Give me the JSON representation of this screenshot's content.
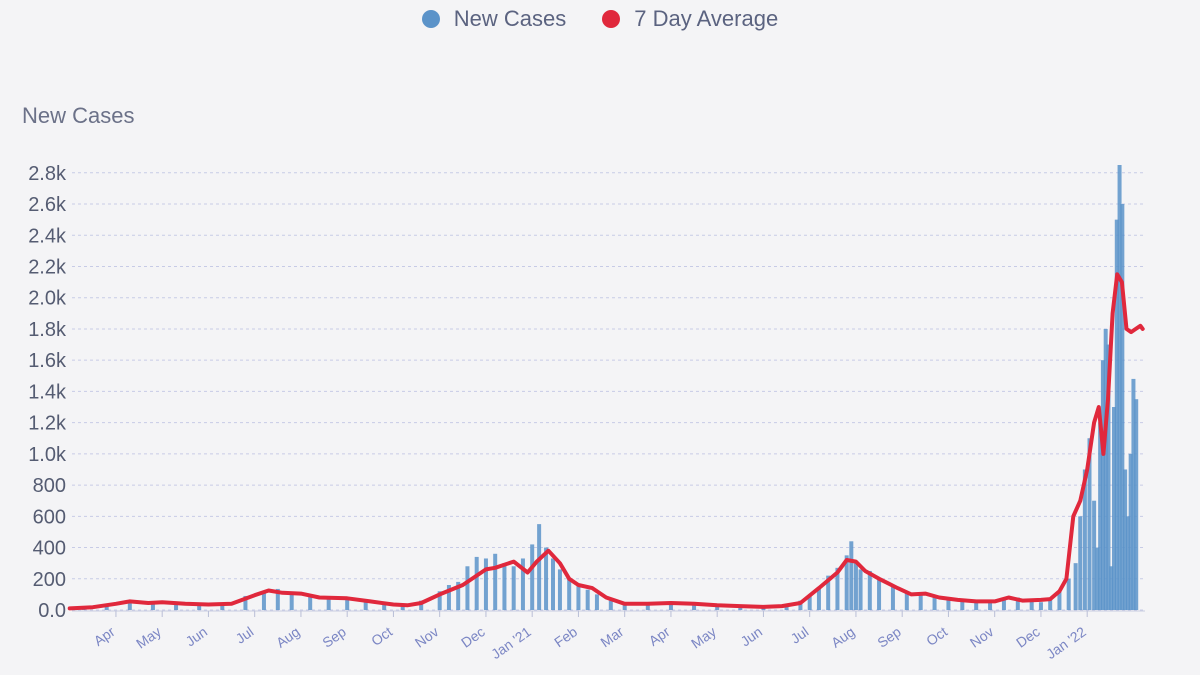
{
  "chart_data": {
    "type": "bar",
    "title": "",
    "ylabel": "New Cases",
    "xlabel": "",
    "ylim": [
      0,
      2850
    ],
    "yticks": [
      "0.0",
      "200",
      "400",
      "600",
      "800",
      "1.0k",
      "1.2k",
      "1.4k",
      "1.6k",
      "1.8k",
      "2.0k",
      "2.2k",
      "2.4k",
      "2.6k",
      "2.8k"
    ],
    "xticks": [
      "Apr",
      "May",
      "Jun",
      "Jul",
      "Aug",
      "Sep",
      "Oct",
      "Nov",
      "Dec",
      "Jan '21",
      "Feb",
      "Mar",
      "Apr",
      "May",
      "Jun",
      "Jul",
      "Aug",
      "Sep",
      "Oct",
      "Nov",
      "Dec",
      "Jan '22"
    ],
    "x_month_index": [
      1,
      2,
      3,
      4,
      5,
      6,
      7,
      8,
      9,
      10,
      11,
      12,
      13,
      14,
      15,
      16,
      17,
      18,
      19,
      20,
      21,
      22
    ],
    "x_range_months": [
      0.05,
      23.25
    ],
    "legend": [
      {
        "label": "New Cases",
        "color": "#5b93c9"
      },
      {
        "label": "7 Day Average",
        "color": "#e0283c"
      }
    ],
    "series": [
      {
        "name": "New Cases",
        "type": "bar",
        "color": "#5b93c9",
        "x_month": [
          0.3,
          0.8,
          1.3,
          1.8,
          2.3,
          2.8,
          3.3,
          3.8,
          4.2,
          4.5,
          4.8,
          5.2,
          5.6,
          6.0,
          6.4,
          6.8,
          7.2,
          7.6,
          8.0,
          8.2,
          8.4,
          8.6,
          8.8,
          9.0,
          9.2,
          9.4,
          9.6,
          9.8,
          10.0,
          10.15,
          10.3,
          10.45,
          10.6,
          10.8,
          11.0,
          11.2,
          11.4,
          11.7,
          12.0,
          12.5,
          13.0,
          13.5,
          14.0,
          14.5,
          15.0,
          15.5,
          15.8,
          16.0,
          16.2,
          16.4,
          16.6,
          16.8,
          16.9,
          17.0,
          17.1,
          17.3,
          17.5,
          17.8,
          18.1,
          18.4,
          18.7,
          19.0,
          19.3,
          19.6,
          19.9,
          20.2,
          20.5,
          20.8,
          21.0,
          21.2,
          21.4,
          21.6,
          21.75,
          21.85,
          21.95,
          22.05,
          22.15,
          22.22,
          22.28,
          22.34,
          22.4,
          22.46,
          22.52,
          22.58,
          22.64,
          22.7,
          22.76,
          22.82,
          22.88,
          22.94,
          23.0,
          23.06
        ],
        "values": [
          15,
          40,
          50,
          45,
          40,
          35,
          45,
          90,
          110,
          135,
          115,
          100,
          85,
          80,
          65,
          40,
          25,
          60,
          120,
          160,
          180,
          280,
          340,
          330,
          360,
          300,
          280,
          330,
          420,
          550,
          400,
          330,
          260,
          200,
          160,
          130,
          100,
          60,
          40,
          45,
          50,
          35,
          30,
          25,
          20,
          25,
          60,
          90,
          140,
          220,
          270,
          350,
          440,
          300,
          260,
          250,
          200,
          150,
          120,
          100,
          90,
          80,
          70,
          60,
          50,
          65,
          80,
          60,
          50,
          80,
          120,
          200,
          300,
          600,
          900,
          1100,
          700,
          400,
          1200,
          1600,
          1800,
          1700,
          280,
          1300,
          2500,
          2850,
          2600,
          900,
          600,
          1000,
          1480,
          1350
        ]
      },
      {
        "name": "7 Day Average",
        "type": "line",
        "color": "#e0283c",
        "x_month": [
          0.0,
          0.5,
          1.0,
          1.3,
          1.7,
          2.0,
          2.5,
          3.0,
          3.5,
          4.0,
          4.3,
          4.6,
          5.0,
          5.4,
          6.0,
          6.5,
          7.0,
          7.3,
          7.6,
          8.0,
          8.5,
          9.0,
          9.2,
          9.6,
          9.9,
          10.1,
          10.35,
          10.6,
          10.8,
          11.0,
          11.3,
          11.6,
          12.0,
          12.5,
          13.0,
          13.5,
          14.0,
          14.5,
          15.0,
          15.4,
          15.8,
          16.2,
          16.6,
          16.8,
          17.0,
          17.2,
          17.5,
          17.9,
          18.2,
          18.5,
          18.8,
          19.2,
          19.6,
          20.0,
          20.3,
          20.6,
          21.0,
          21.2,
          21.4,
          21.55,
          21.7,
          21.85,
          22.0,
          22.15,
          22.25,
          22.35,
          22.45,
          22.55,
          22.65,
          22.75,
          22.85,
          22.95,
          23.05,
          23.15,
          23.2
        ],
        "values": [
          10,
          18,
          40,
          55,
          45,
          50,
          40,
          35,
          40,
          95,
          125,
          110,
          105,
          80,
          75,
          55,
          35,
          30,
          45,
          100,
          160,
          260,
          270,
          310,
          240,
          310,
          380,
          300,
          200,
          160,
          140,
          80,
          40,
          40,
          45,
          40,
          30,
          25,
          20,
          25,
          45,
          140,
          240,
          320,
          310,
          250,
          200,
          140,
          100,
          105,
          80,
          65,
          55,
          55,
          80,
          60,
          65,
          70,
          120,
          200,
          600,
          700,
          900,
          1200,
          1300,
          1000,
          1350,
          1900,
          2150,
          2100,
          1800,
          1780,
          1800,
          1820,
          1800
        ]
      }
    ]
  }
}
